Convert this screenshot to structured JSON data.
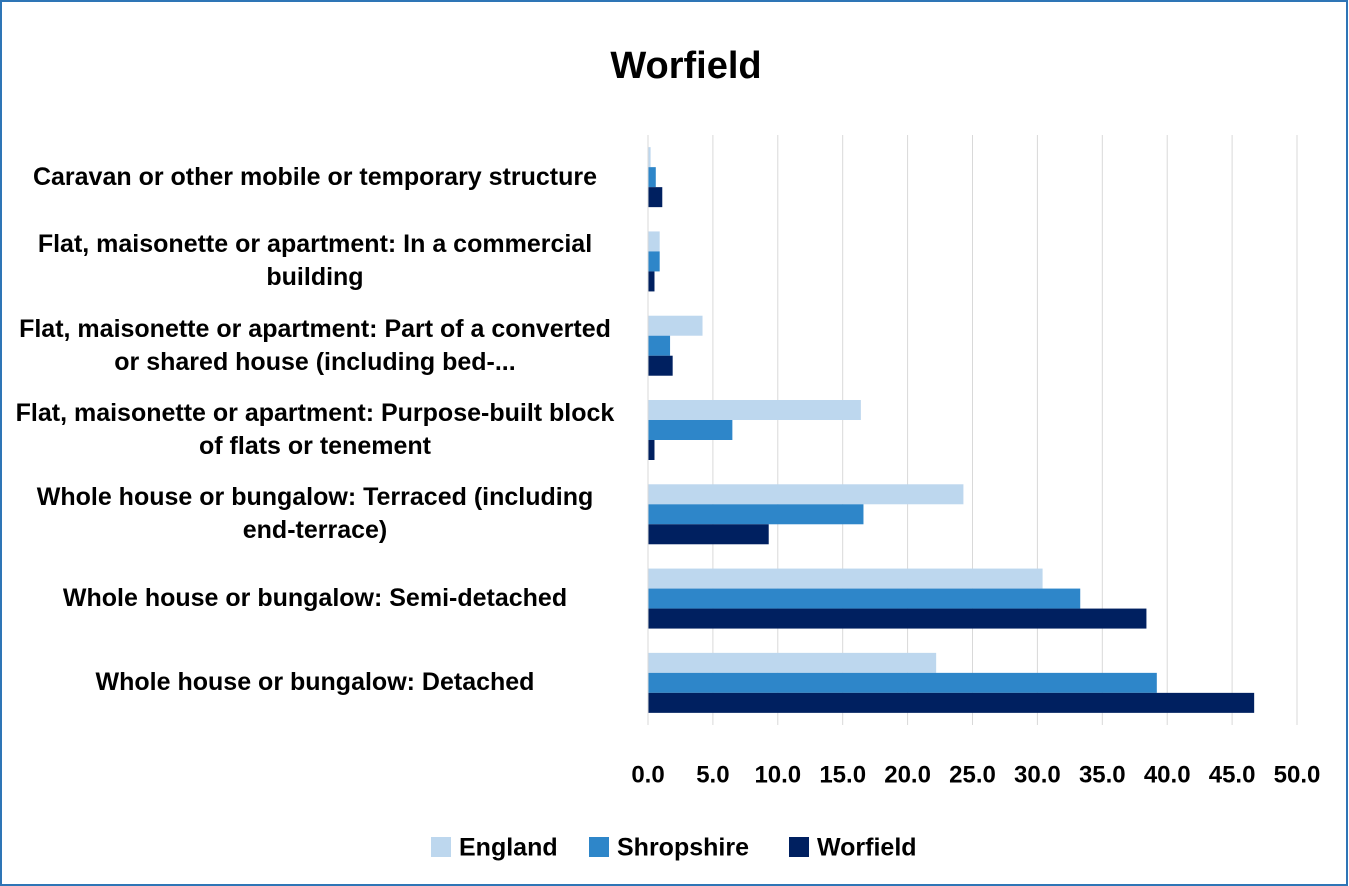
{
  "chart_data": {
    "type": "bar",
    "orientation": "horizontal",
    "title": "Worfield",
    "categories": [
      "Caravan or other mobile or temporary structure",
      "Flat, maisonette or apartment: In a commercial building",
      "Flat, maisonette or apartment: Part of a converted or shared house (including bed-...",
      "Flat, maisonette or apartment: Purpose-built block of flats or tenement",
      "Whole house or bungalow: Terraced (including end-terrace)",
      "Whole house or bungalow: Semi-detached",
      "Whole house or bungalow: Detached"
    ],
    "series": [
      {
        "name": "England",
        "color": "#bdd7ee",
        "values": [
          0.2,
          0.9,
          4.2,
          16.4,
          24.3,
          30.4,
          22.2
        ]
      },
      {
        "name": "Shropshire",
        "color": "#2e86c9",
        "values": [
          0.6,
          0.9,
          1.7,
          6.5,
          16.6,
          33.3,
          39.2
        ]
      },
      {
        "name": "Worfield",
        "color": "#002060",
        "values": [
          1.1,
          0.5,
          1.9,
          0.5,
          9.3,
          38.4,
          46.7
        ]
      }
    ],
    "xlim": [
      0,
      50
    ],
    "xticks": [
      {
        "value": 0,
        "label": "0.0"
      },
      {
        "value": 5,
        "label": "5.0"
      },
      {
        "value": 10,
        "label": "10.0"
      },
      {
        "value": 15,
        "label": "15.0"
      },
      {
        "value": 20,
        "label": "20.0"
      },
      {
        "value": 25,
        "label": "25.0"
      },
      {
        "value": 30,
        "label": "30.0"
      },
      {
        "value": 35,
        "label": "35.0"
      },
      {
        "value": 40,
        "label": "40.0"
      },
      {
        "value": 45,
        "label": "45.0"
      },
      {
        "value": 50,
        "label": "50.0"
      }
    ],
    "grid": true,
    "legend": "bottom"
  }
}
